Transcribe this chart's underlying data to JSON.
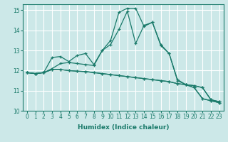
{
  "title": "",
  "xlabel": "Humidex (Indice chaleur)",
  "bg_color": "#cce8e8",
  "grid_color": "#ffffff",
  "line_color": "#1a7a6a",
  "xlim": [
    -0.5,
    23.5
  ],
  "ylim": [
    10,
    15.3
  ],
  "yticks": [
    10,
    11,
    12,
    13,
    14,
    15
  ],
  "xticks": [
    0,
    1,
    2,
    3,
    4,
    5,
    6,
    7,
    8,
    9,
    10,
    11,
    12,
    13,
    14,
    15,
    16,
    17,
    18,
    19,
    20,
    21,
    22,
    23
  ],
  "series": [
    {
      "x": [
        0,
        1,
        2,
        3,
        4,
        5,
        6,
        7,
        8,
        9,
        10,
        11,
        12,
        13,
        14,
        15,
        16,
        17,
        18,
        19,
        20,
        21,
        22,
        23
      ],
      "y": [
        11.9,
        11.85,
        11.9,
        12.05,
        12.05,
        12.0,
        11.97,
        11.95,
        11.9,
        11.85,
        11.8,
        11.75,
        11.7,
        11.65,
        11.6,
        11.55,
        11.5,
        11.45,
        11.35,
        11.3,
        11.25,
        11.15,
        10.55,
        10.45
      ]
    },
    {
      "x": [
        0,
        1,
        2,
        3,
        4,
        5,
        6,
        7,
        8,
        9,
        10,
        11,
        12,
        13,
        14,
        15,
        16,
        17,
        18,
        19,
        20,
        21,
        22,
        23
      ],
      "y": [
        11.9,
        11.85,
        11.9,
        12.05,
        12.05,
        12.0,
        11.97,
        11.95,
        11.9,
        11.85,
        11.8,
        11.75,
        11.7,
        11.65,
        11.6,
        11.55,
        11.5,
        11.45,
        11.35,
        11.3,
        11.25,
        11.15,
        10.55,
        10.45
      ]
    },
    {
      "x": [
        0,
        1,
        2,
        3,
        4,
        5,
        6,
        7,
        8,
        9,
        10,
        11,
        12,
        13,
        14,
        15,
        16,
        17,
        18,
        19,
        20,
        21,
        22,
        23
      ],
      "y": [
        11.9,
        11.85,
        11.9,
        12.65,
        12.7,
        12.45,
        12.75,
        12.85,
        12.3,
        13.0,
        13.3,
        14.05,
        14.95,
        13.35,
        14.25,
        14.4,
        13.3,
        12.85,
        11.5,
        11.3,
        11.15,
        10.6,
        10.5,
        10.4
      ]
    },
    {
      "x": [
        0,
        1,
        2,
        3,
        4,
        5,
        6,
        7,
        8,
        9,
        10,
        11,
        12,
        13,
        14,
        15,
        16,
        17,
        18,
        19,
        20,
        21,
        22,
        23
      ],
      "y": [
        11.9,
        11.85,
        11.9,
        12.1,
        12.35,
        12.4,
        12.35,
        12.3,
        12.25,
        13.0,
        13.5,
        14.9,
        15.1,
        15.1,
        14.2,
        14.4,
        13.25,
        12.85,
        11.55,
        11.3,
        11.15,
        10.6,
        10.5,
        10.4
      ]
    }
  ]
}
